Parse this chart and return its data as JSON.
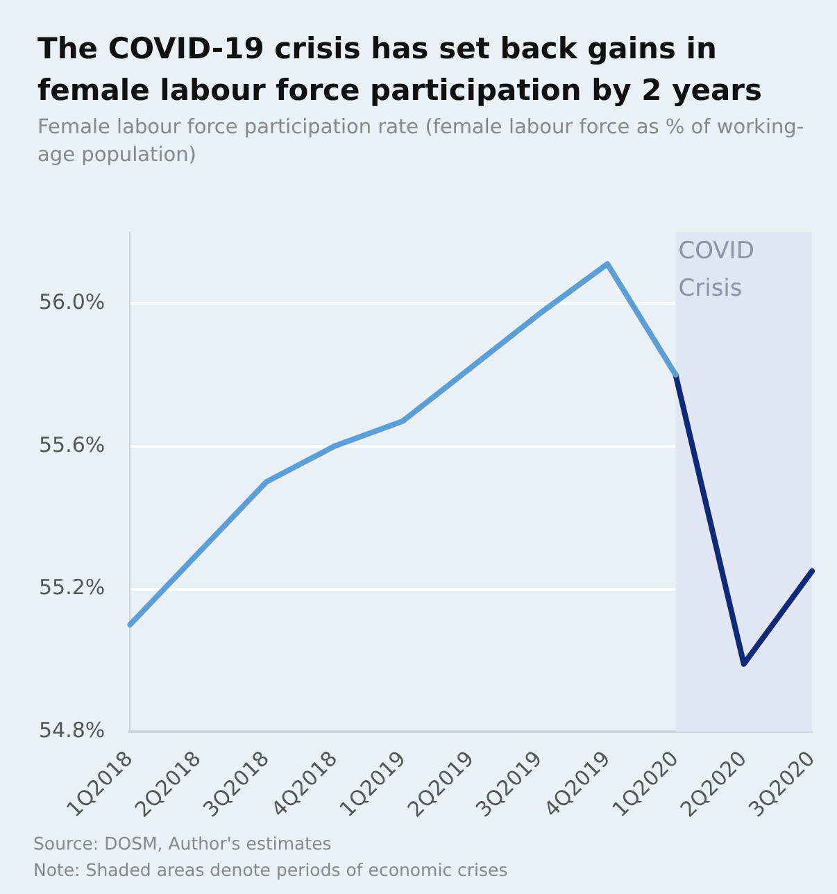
{
  "chart_data": {
    "type": "line",
    "title": "The COVID-19 crisis has set back gains in female labour force participation by 2 years",
    "subtitle": "Female labour force participation rate (female labour force as % of working-age population)",
    "categories": [
      "1Q2018",
      "2Q2018",
      "3Q2018",
      "4Q2018",
      "1Q2019",
      "2Q2019",
      "3Q2019",
      "4Q2019",
      "1Q2020",
      "2Q2020",
      "3Q2020"
    ],
    "series": [
      {
        "color": "#5b9fd9",
        "values": [
          55.1,
          55.3,
          55.5,
          55.6,
          55.67,
          55.82,
          55.97,
          56.11,
          55.8,
          null,
          null
        ]
      },
      {
        "color": "#0d2a7a",
        "values": [
          null,
          null,
          null,
          null,
          null,
          null,
          null,
          null,
          55.8,
          54.99,
          55.25
        ]
      }
    ],
    "ylim": [
      54.8,
      56.2
    ],
    "yticks": [
      {
        "value": 54.8,
        "label": "54.8%"
      },
      {
        "value": 55.2,
        "label": "55.2%"
      },
      {
        "value": 55.6,
        "label": "55.6%"
      },
      {
        "value": 56.0,
        "label": "56.0%"
      }
    ],
    "grid": "y",
    "marker": "none",
    "line_style": "solid",
    "bands": [
      {
        "axis": "x",
        "from": "1Q2020",
        "to": "3Q2020",
        "label": "COVID Crisis",
        "color": "#e0e7f2"
      }
    ],
    "annotations": [
      "Source: DOSM, Author's estimates",
      "Note: Shaded areas denote periods of economic crises"
    ]
  }
}
